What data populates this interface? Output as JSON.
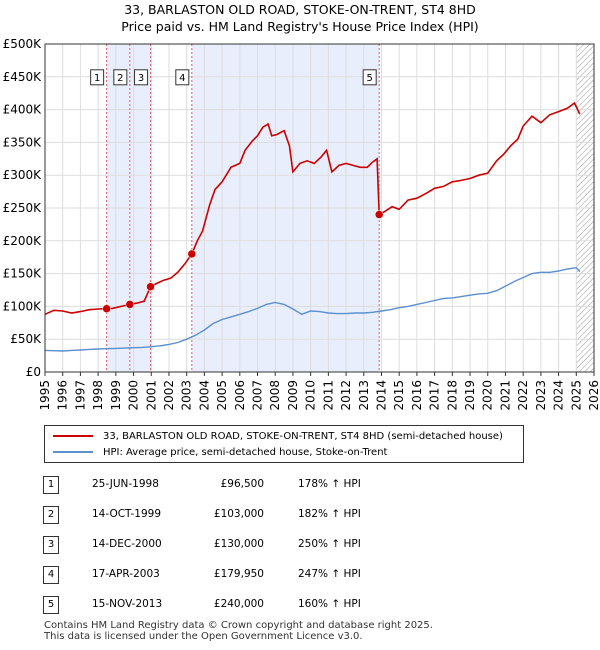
{
  "title_line1": "33, BARLASTON OLD ROAD, STOKE-ON-TRENT, ST4 8HD",
  "title_line2": "Price paid vs. HM Land Registry's House Price Index (HPI)",
  "legend": {
    "property": "33, BARLASTON OLD ROAD, STOKE-ON-TRENT, ST4 8HD (semi-detached house)",
    "hpi": "HPI: Average price, semi-detached house, Stoke-on-Trent"
  },
  "colors": {
    "property": "#cc0000",
    "hpi": "#5b8fd0",
    "shade": "#e8eefb",
    "marker": "#cc0000",
    "grid": "#dddddd"
  },
  "transactions": [
    {
      "num": "1",
      "date": "25-JUN-1998",
      "price": "£96,500",
      "hpi": "178% ↑ HPI"
    },
    {
      "num": "2",
      "date": "14-OCT-1999",
      "price": "£103,000",
      "hpi": "182% ↑ HPI"
    },
    {
      "num": "3",
      "date": "14-DEC-2000",
      "price": "£130,000",
      "hpi": "250% ↑ HPI"
    },
    {
      "num": "4",
      "date": "17-APR-2003",
      "price": "£179,950",
      "hpi": "247% ↑ HPI"
    },
    {
      "num": "5",
      "date": "15-NOV-2013",
      "price": "£240,000",
      "hpi": "160% ↑ HPI"
    }
  ],
  "footer": {
    "line1": "Contains HM Land Registry data © Crown copyright and database right 2025.",
    "line2": "This data is licensed under the Open Government Licence v3.0."
  },
  "chart_data": {
    "type": "line",
    "xlim": [
      1995,
      2026
    ],
    "ylim": [
      0,
      500000
    ],
    "y_ticks": [
      0,
      50000,
      100000,
      150000,
      200000,
      250000,
      300000,
      350000,
      400000,
      450000,
      500000
    ],
    "y_tick_labels": [
      "£0",
      "£50K",
      "£100K",
      "£150K",
      "£200K",
      "£250K",
      "£300K",
      "£350K",
      "£400K",
      "£450K",
      "£500K"
    ],
    "x_ticks": [
      1995,
      1996,
      1997,
      1998,
      1999,
      2000,
      2001,
      2002,
      2003,
      2004,
      2005,
      2006,
      2007,
      2008,
      2009,
      2010,
      2011,
      2012,
      2013,
      2014,
      2015,
      2016,
      2017,
      2018,
      2019,
      2020,
      2021,
      2022,
      2023,
      2024,
      2025,
      2026
    ],
    "x_tick_labels": [
      "1995",
      "1996",
      "1997",
      "1998",
      "1999",
      "2000",
      "2001",
      "2002",
      "2003",
      "2004",
      "2005",
      "2006",
      "2007",
      "2008",
      "2009",
      "2010",
      "2011",
      "2012",
      "2013",
      "2014",
      "2015",
      "2016",
      "2017",
      "2018",
      "2019",
      "2020",
      "2021",
      "2022",
      "2023",
      "2024",
      "2025",
      "2026"
    ],
    "shaded_spans": [
      [
        1998.48,
        2000.96
      ],
      [
        2003.29,
        2013.87
      ]
    ],
    "sales": [
      {
        "label": "1",
        "x": 1998.48,
        "y": 96500
      },
      {
        "label": "2",
        "x": 1999.79,
        "y": 103000
      },
      {
        "label": "3",
        "x": 2000.96,
        "y": 130000
      },
      {
        "label": "4",
        "x": 2003.29,
        "y": 179950
      },
      {
        "label": "5",
        "x": 2013.87,
        "y": 240000
      }
    ],
    "hatched_from": 2025.0,
    "series": [
      {
        "name": "33, BARLASTON OLD ROAD, STOKE-ON-TRENT, ST4 8HD (semi-detached house)",
        "points": [
          [
            1995.0,
            88000
          ],
          [
            1995.5,
            94000
          ],
          [
            1996.0,
            93000
          ],
          [
            1996.5,
            90000
          ],
          [
            1997.0,
            92000
          ],
          [
            1997.5,
            95000
          ],
          [
            1998.0,
            96000
          ],
          [
            1998.48,
            96500
          ],
          [
            1998.8,
            97000
          ],
          [
            1999.3,
            100000
          ],
          [
            1999.79,
            103000
          ],
          [
            2000.2,
            105000
          ],
          [
            2000.6,
            108000
          ],
          [
            2000.96,
            130000
          ],
          [
            2001.3,
            135000
          ],
          [
            2001.7,
            140000
          ],
          [
            2002.1,
            143000
          ],
          [
            2002.5,
            152000
          ],
          [
            2002.9,
            165000
          ],
          [
            2003.29,
            179950
          ],
          [
            2003.6,
            200000
          ],
          [
            2003.9,
            215000
          ],
          [
            2004.3,
            255000
          ],
          [
            2004.6,
            278000
          ],
          [
            2005.0,
            290000
          ],
          [
            2005.5,
            312000
          ],
          [
            2006.0,
            318000
          ],
          [
            2006.3,
            338000
          ],
          [
            2006.7,
            352000
          ],
          [
            2007.0,
            360000
          ],
          [
            2007.3,
            373000
          ],
          [
            2007.6,
            378000
          ],
          [
            2007.8,
            360000
          ],
          [
            2008.1,
            362000
          ],
          [
            2008.5,
            368000
          ],
          [
            2008.8,
            345000
          ],
          [
            2009.0,
            305000
          ],
          [
            2009.4,
            318000
          ],
          [
            2009.8,
            322000
          ],
          [
            2010.2,
            318000
          ],
          [
            2010.6,
            328000
          ],
          [
            2010.9,
            338000
          ],
          [
            2011.2,
            305000
          ],
          [
            2011.6,
            315000
          ],
          [
            2012.0,
            318000
          ],
          [
            2012.4,
            315000
          ],
          [
            2012.8,
            312000
          ],
          [
            2013.2,
            312000
          ],
          [
            2013.5,
            320000
          ],
          [
            2013.75,
            325000
          ],
          [
            2013.87,
            240000
          ],
          [
            2014.2,
            245000
          ],
          [
            2014.6,
            252000
          ],
          [
            2015.0,
            248000
          ],
          [
            2015.5,
            262000
          ],
          [
            2016.0,
            265000
          ],
          [
            2016.5,
            272000
          ],
          [
            2017.0,
            280000
          ],
          [
            2017.5,
            283000
          ],
          [
            2018.0,
            290000
          ],
          [
            2018.5,
            292000
          ],
          [
            2019.0,
            295000
          ],
          [
            2019.5,
            300000
          ],
          [
            2020.0,
            303000
          ],
          [
            2020.5,
            322000
          ],
          [
            2020.9,
            332000
          ],
          [
            2021.3,
            345000
          ],
          [
            2021.7,
            355000
          ],
          [
            2022.0,
            375000
          ],
          [
            2022.5,
            390000
          ],
          [
            2023.0,
            380000
          ],
          [
            2023.5,
            392000
          ],
          [
            2024.0,
            397000
          ],
          [
            2024.5,
            402000
          ],
          [
            2024.9,
            410000
          ],
          [
            2025.2,
            393000
          ]
        ]
      },
      {
        "name": "HPI: Average price, semi-detached house, Stoke-on-Trent",
        "points": [
          [
            1995.0,
            33000
          ],
          [
            1995.5,
            32500
          ],
          [
            1996.0,
            32000
          ],
          [
            1996.5,
            33000
          ],
          [
            1997.0,
            33500
          ],
          [
            1997.5,
            34500
          ],
          [
            1998.0,
            35000
          ],
          [
            1998.5,
            35500
          ],
          [
            1999.0,
            36000
          ],
          [
            1999.5,
            36500
          ],
          [
            2000.0,
            37000
          ],
          [
            2000.5,
            37500
          ],
          [
            2001.0,
            38500
          ],
          [
            2001.5,
            40000
          ],
          [
            2002.0,
            42000
          ],
          [
            2002.5,
            45000
          ],
          [
            2003.0,
            50000
          ],
          [
            2003.5,
            56000
          ],
          [
            2004.0,
            64000
          ],
          [
            2004.5,
            74000
          ],
          [
            2005.0,
            80000
          ],
          [
            2005.5,
            84000
          ],
          [
            2006.0,
            88000
          ],
          [
            2006.5,
            92000
          ],
          [
            2007.0,
            97000
          ],
          [
            2007.5,
            103000
          ],
          [
            2008.0,
            106000
          ],
          [
            2008.5,
            103000
          ],
          [
            2009.0,
            96000
          ],
          [
            2009.5,
            88000
          ],
          [
            2010.0,
            93000
          ],
          [
            2010.5,
            92000
          ],
          [
            2011.0,
            90000
          ],
          [
            2011.5,
            89000
          ],
          [
            2012.0,
            89000
          ],
          [
            2012.5,
            90000
          ],
          [
            2013.0,
            90000
          ],
          [
            2013.5,
            91000
          ],
          [
            2014.0,
            93000
          ],
          [
            2014.5,
            95000
          ],
          [
            2015.0,
            98000
          ],
          [
            2015.5,
            100000
          ],
          [
            2016.0,
            103000
          ],
          [
            2016.5,
            106000
          ],
          [
            2017.0,
            109000
          ],
          [
            2017.5,
            112000
          ],
          [
            2018.0,
            113000
          ],
          [
            2018.5,
            115000
          ],
          [
            2019.0,
            117000
          ],
          [
            2019.5,
            119000
          ],
          [
            2020.0,
            120000
          ],
          [
            2020.5,
            124000
          ],
          [
            2021.0,
            131000
          ],
          [
            2021.5,
            138000
          ],
          [
            2022.0,
            144000
          ],
          [
            2022.5,
            150000
          ],
          [
            2023.0,
            152000
          ],
          [
            2023.5,
            152000
          ],
          [
            2024.0,
            154000
          ],
          [
            2024.5,
            157000
          ],
          [
            2025.0,
            159000
          ],
          [
            2025.2,
            153000
          ]
        ]
      }
    ]
  }
}
